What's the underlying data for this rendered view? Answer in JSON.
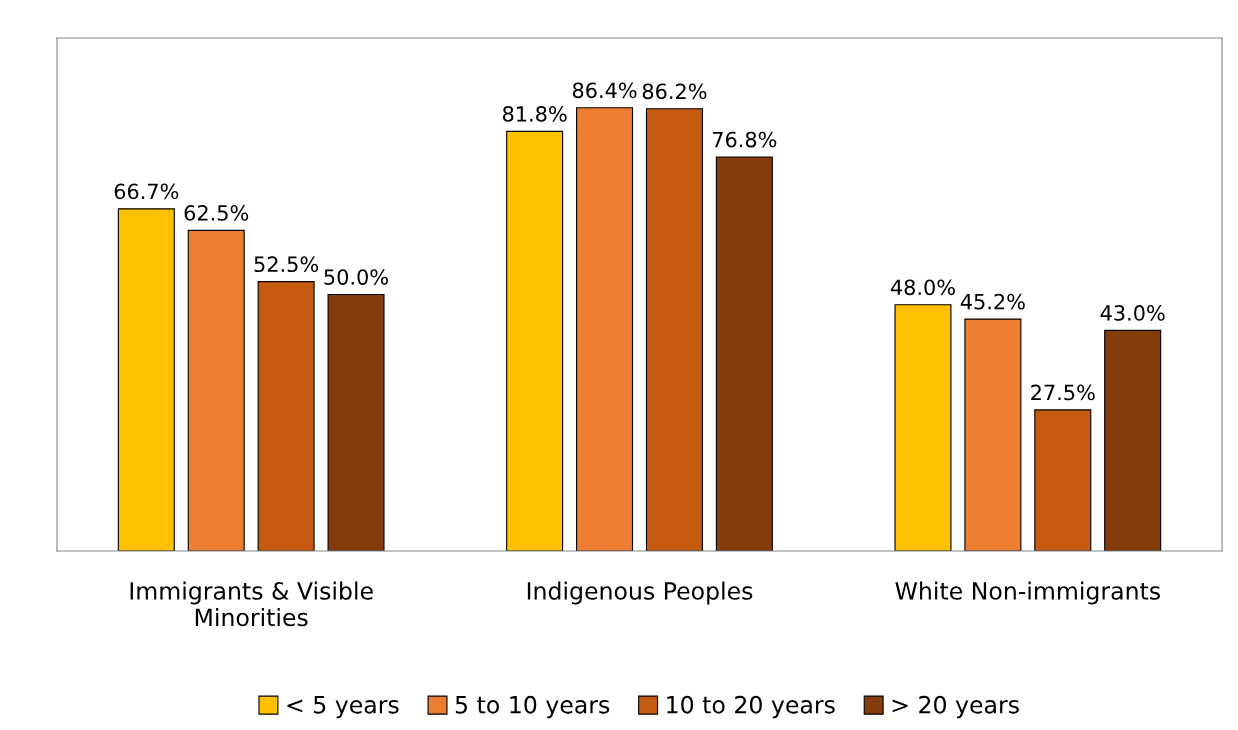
{
  "chart_data": {
    "type": "bar",
    "categories": [
      "Immigrants & Visible Minorities",
      "Indigenous Peoples",
      "White Non-immigrants"
    ],
    "series": [
      {
        "name": "< 5 years",
        "color": "#ffc000",
        "values": [
          66.7,
          81.8,
          48.0
        ],
        "value_labels": [
          "66.7%",
          "81.8%",
          "48.0%"
        ]
      },
      {
        "name": "5 to 10 years",
        "color": "#ed7d31",
        "values": [
          62.5,
          86.4,
          45.2
        ],
        "value_labels": [
          "62.5%",
          "86.4%",
          "45.2%"
        ]
      },
      {
        "name": "10 to 20 years",
        "color": "#c55a11",
        "values": [
          52.5,
          86.2,
          27.5
        ],
        "value_labels": [
          "52.5%",
          "86.2%",
          "27.5%"
        ]
      },
      {
        "name": "> 20 years",
        "color": "#843c0c",
        "values": [
          50.0,
          76.8,
          43.0
        ],
        "value_labels": [
          "50.0%",
          "76.8%",
          "43.0%"
        ]
      }
    ],
    "tick_labels": "x",
    "grid": false,
    "legend": "bottom"
  }
}
